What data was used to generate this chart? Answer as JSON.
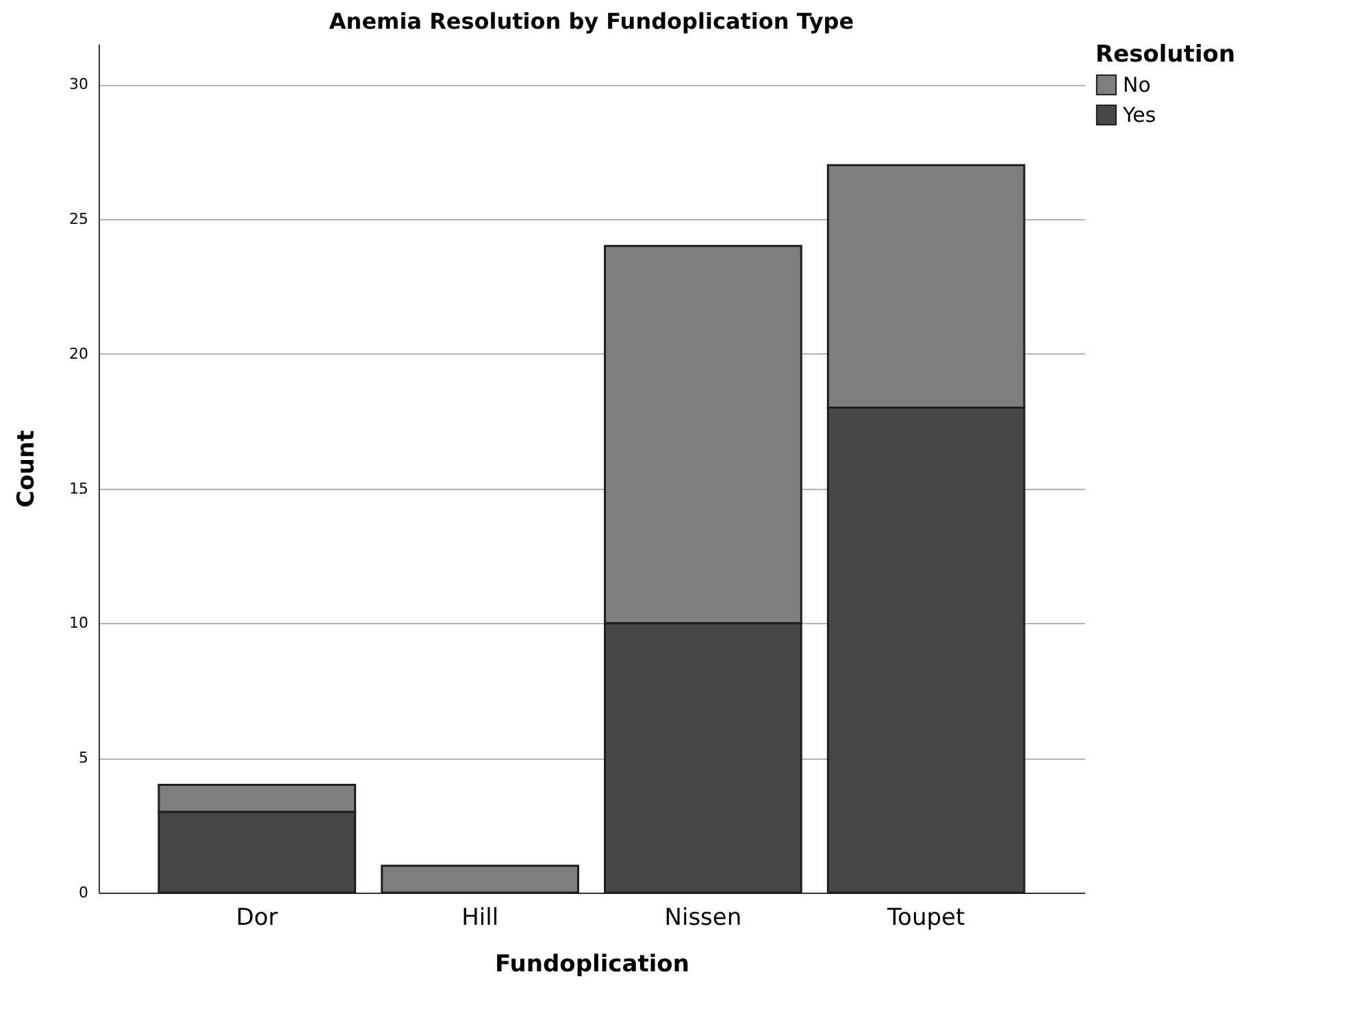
{
  "chart_data": {
    "type": "bar",
    "title": "Anemia Resolution by Fundoplication Type",
    "xlabel": "Fundoplication",
    "ylabel": "Count",
    "legend_title": "Resolution",
    "categories": [
      "Dor",
      "Hill",
      "Nissen",
      "Toupet"
    ],
    "series": [
      {
        "name": "Yes",
        "color": "#474747",
        "values": [
          3,
          0,
          10,
          18
        ]
      },
      {
        "name": "No",
        "color": "#7f7f7f",
        "values": [
          1,
          1,
          14,
          9
        ]
      }
    ],
    "stacked": true,
    "ylim": [
      0,
      31.5
    ],
    "yticks": [
      0,
      5,
      10,
      15,
      20,
      25,
      30
    ],
    "grid": "y",
    "legend": "top right"
  }
}
